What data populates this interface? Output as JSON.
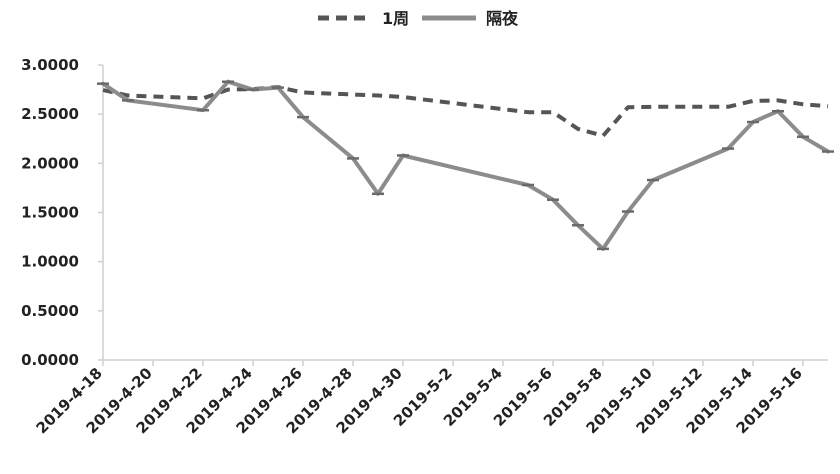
{
  "chart_data": {
    "type": "line",
    "title": "",
    "xlabel": "",
    "ylabel": "",
    "ylim": [
      0,
      3
    ],
    "y_ticks": [
      "0.0000",
      "0.5000",
      "1.0000",
      "1.5000",
      "2.0000",
      "2.5000",
      "3.0000"
    ],
    "x_ticks": [
      "2019-4-18",
      "2019-4-20",
      "2019-4-22",
      "2019-4-24",
      "2019-4-26",
      "2019-4-28",
      "2019-4-30",
      "2019-5-2",
      "2019-5-4",
      "2019-5-6",
      "2019-5-8",
      "2019-5-10",
      "2019-5-12",
      "2019-5-14",
      "2019-5-16"
    ],
    "x_start": "2019-4-18",
    "x_end": "2019-5-17",
    "legend_position": "top-center",
    "grid": false,
    "series": [
      {
        "name": "1周",
        "style": "dashed",
        "color": "#555555",
        "points": [
          {
            "x": "2019-4-18",
            "y": 2.745
          },
          {
            "x": "2019-4-19",
            "y": 2.69
          },
          {
            "x": "2019-4-22",
            "y": 2.66
          },
          {
            "x": "2019-4-23",
            "y": 2.75
          },
          {
            "x": "2019-4-24",
            "y": 2.755
          },
          {
            "x": "2019-4-25",
            "y": 2.775
          },
          {
            "x": "2019-4-26",
            "y": 2.72
          },
          {
            "x": "2019-4-28",
            "y": 2.7
          },
          {
            "x": "2019-4-29",
            "y": 2.69
          },
          {
            "x": "2019-4-30",
            "y": 2.675
          },
          {
            "x": "2019-5-5",
            "y": 2.52
          },
          {
            "x": "2019-5-6",
            "y": 2.52
          },
          {
            "x": "2019-5-7",
            "y": 2.35
          },
          {
            "x": "2019-5-8",
            "y": 2.28
          },
          {
            "x": "2019-5-9",
            "y": 2.57
          },
          {
            "x": "2019-5-10",
            "y": 2.575
          },
          {
            "x": "2019-5-13",
            "y": 2.575
          },
          {
            "x": "2019-5-14",
            "y": 2.635
          },
          {
            "x": "2019-5-15",
            "y": 2.64
          },
          {
            "x": "2019-5-16",
            "y": 2.6
          },
          {
            "x": "2019-5-17",
            "y": 2.58
          }
        ]
      },
      {
        "name": "隔夜",
        "style": "solid",
        "color": "#8c8c8c",
        "points": [
          {
            "x": "2019-4-18",
            "y": 2.81
          },
          {
            "x": "2019-4-19",
            "y": 2.64
          },
          {
            "x": "2019-4-22",
            "y": 2.54
          },
          {
            "x": "2019-4-23",
            "y": 2.83
          },
          {
            "x": "2019-4-24",
            "y": 2.75
          },
          {
            "x": "2019-4-25",
            "y": 2.77
          },
          {
            "x": "2019-4-26",
            "y": 2.47
          },
          {
            "x": "2019-4-28",
            "y": 2.05
          },
          {
            "x": "2019-4-29",
            "y": 1.69
          },
          {
            "x": "2019-4-30",
            "y": 2.08
          },
          {
            "x": "2019-5-5",
            "y": 1.78
          },
          {
            "x": "2019-5-6",
            "y": 1.63
          },
          {
            "x": "2019-5-7",
            "y": 1.37
          },
          {
            "x": "2019-5-8",
            "y": 1.13
          },
          {
            "x": "2019-5-9",
            "y": 1.51
          },
          {
            "x": "2019-5-10",
            "y": 1.83
          },
          {
            "x": "2019-5-13",
            "y": 2.15
          },
          {
            "x": "2019-5-14",
            "y": 2.42
          },
          {
            "x": "2019-5-15",
            "y": 2.53
          },
          {
            "x": "2019-5-16",
            "y": 2.27
          },
          {
            "x": "2019-5-17",
            "y": 2.12
          }
        ]
      }
    ]
  }
}
